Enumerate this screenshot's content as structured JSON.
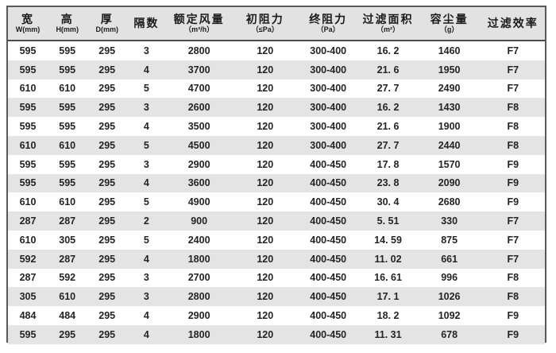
{
  "colors": {
    "frame_border": "#58595b",
    "header_bg": "#e2e2e2",
    "row_alt_bg": "#e4e4e4",
    "row_bg": "#ffffff",
    "text": "#242424"
  },
  "table": {
    "columns": [
      {
        "id": "width",
        "main": "宽",
        "sub": "W(mm)"
      },
      {
        "id": "height",
        "main": "高",
        "sub": "H(mm)"
      },
      {
        "id": "depth",
        "main": "厚",
        "sub": "D(mm)"
      },
      {
        "id": "sections",
        "main": "隔数",
        "sub": ""
      },
      {
        "id": "rated-airflow",
        "main": "额定风量",
        "sub": "（m³/h）"
      },
      {
        "id": "initial-resistance",
        "main": "初阻力",
        "sub": "（≤Pa）"
      },
      {
        "id": "final-resistance",
        "main": "终阻力",
        "sub": "（Pa）"
      },
      {
        "id": "filter-area",
        "main": "过滤面积",
        "sub": "（m²）"
      },
      {
        "id": "dust-capacity",
        "main": "容尘量",
        "sub": "（g）"
      },
      {
        "id": "efficiency",
        "main": "过滤效率",
        "sub": ""
      }
    ],
    "rows": [
      [
        "595",
        "595",
        "295",
        "3",
        "2800",
        "120",
        "300-400",
        "16. 2",
        "1460",
        "F7"
      ],
      [
        "595",
        "595",
        "295",
        "4",
        "3700",
        "120",
        "300-400",
        "21. 6",
        "1950",
        "F7"
      ],
      [
        "610",
        "610",
        "295",
        "5",
        "4700",
        "120",
        "300-400",
        "27. 7",
        "2490",
        "F7"
      ],
      [
        "595",
        "595",
        "295",
        "3",
        "2600",
        "120",
        "300-400",
        "16. 2",
        "1430",
        "F8"
      ],
      [
        "595",
        "595",
        "295",
        "4",
        "3500",
        "120",
        "300-400",
        "21. 6",
        "1900",
        "F8"
      ],
      [
        "610",
        "610",
        "295",
        "5",
        "4500",
        "120",
        "300-400",
        "27. 7",
        "2440",
        "F8"
      ],
      [
        "595",
        "595",
        "295",
        "3",
        "2900",
        "120",
        "400-450",
        "17. 8",
        "1570",
        "F9"
      ],
      [
        "595",
        "595",
        "295",
        "4",
        "3600",
        "120",
        "400-450",
        "23. 8",
        "2090",
        "F9"
      ],
      [
        "610",
        "610",
        "295",
        "5",
        "4900",
        "120",
        "400-450",
        "30. 4",
        "2680",
        "F9"
      ],
      [
        "287",
        "287",
        "295",
        "2",
        "900",
        "120",
        "400-450",
        "5. 51",
        "330",
        "F7"
      ],
      [
        "610",
        "305",
        "295",
        "5",
        "2400",
        "120",
        "400-450",
        "14. 59",
        "875",
        "F7"
      ],
      [
        "592",
        "287",
        "295",
        "4",
        "1800",
        "120",
        "400-450",
        "11. 02",
        "661",
        "F7"
      ],
      [
        "287",
        "592",
        "295",
        "3",
        "2700",
        "120",
        "400-450",
        "16. 61",
        "996",
        "F8"
      ],
      [
        "305",
        "610",
        "295",
        "3",
        "2800",
        "120",
        "400-450",
        "17. 1",
        "1026",
        "F8"
      ],
      [
        "484",
        "484",
        "295",
        "4",
        "2900",
        "120",
        "400-450",
        "18. 2",
        "1092",
        "F9"
      ],
      [
        "595",
        "295",
        "295",
        "4",
        "1800",
        "120",
        "400-450",
        "11. 31",
        "678",
        "F9"
      ]
    ]
  }
}
